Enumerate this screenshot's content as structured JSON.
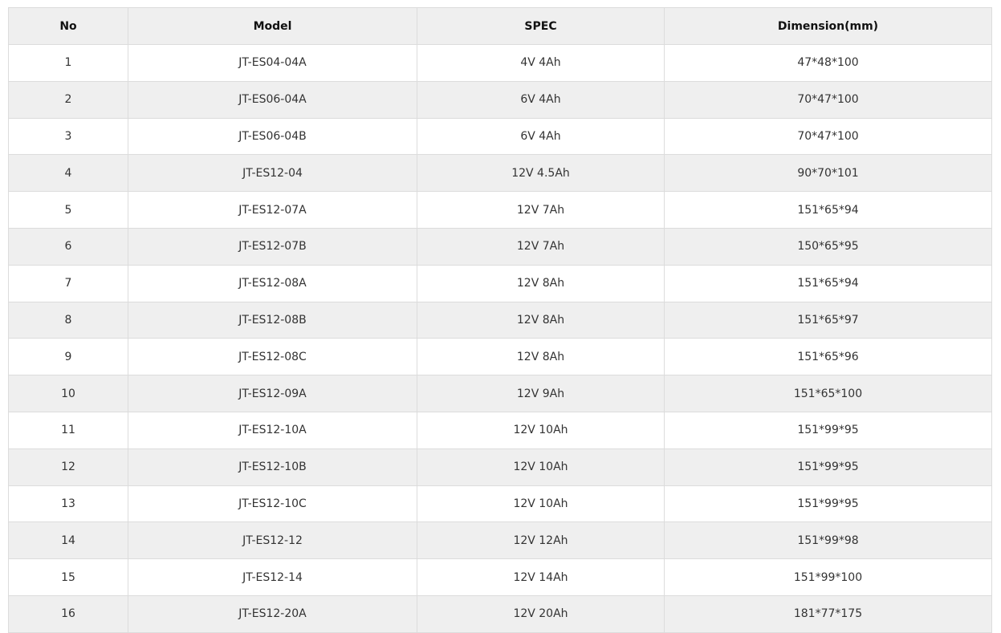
{
  "table": {
    "headers": [
      "No",
      "Model",
      "SPEC",
      "Dimension(mm)"
    ],
    "rows": [
      [
        "1",
        "JT-ES04-04A",
        "4V 4Ah",
        "47*48*100"
      ],
      [
        "2",
        "JT-ES06-04A",
        "6V 4Ah",
        "70*47*100"
      ],
      [
        "3",
        "JT-ES06-04B",
        "6V 4Ah",
        "70*47*100"
      ],
      [
        "4",
        "JT-ES12-04",
        "12V 4.5Ah",
        "90*70*101"
      ],
      [
        "5",
        "JT-ES12-07A",
        "12V 7Ah",
        "151*65*94"
      ],
      [
        "6",
        "JT-ES12-07B",
        "12V 7Ah",
        "150*65*95"
      ],
      [
        "7",
        "JT-ES12-08A",
        "12V 8Ah",
        "151*65*94"
      ],
      [
        "8",
        "JT-ES12-08B",
        "12V 8Ah",
        "151*65*97"
      ],
      [
        "9",
        "JT-ES12-08C",
        "12V 8Ah",
        "151*65*96"
      ],
      [
        "10",
        "JT-ES12-09A",
        "12V 9Ah",
        "151*65*100"
      ],
      [
        "11",
        "JT-ES12-10A",
        "12V 10Ah",
        "151*99*95"
      ],
      [
        "12",
        "JT-ES12-10B",
        "12V 10Ah",
        "151*99*95"
      ],
      [
        "13",
        "JT-ES12-10C",
        "12V 10Ah",
        "151*99*95"
      ],
      [
        "14",
        "JT-ES12-12",
        "12V 12Ah",
        "151*99*98"
      ],
      [
        "15",
        "JT-ES12-14",
        "12V 14Ah",
        "151*99*100"
      ],
      [
        "16",
        "JT-ES12-20A",
        "12V 20Ah",
        "181*77*175"
      ]
    ]
  },
  "colors": {
    "header_bg": "#efefef",
    "stripe_bg": "#efefef",
    "border": "#dcdcdc"
  }
}
